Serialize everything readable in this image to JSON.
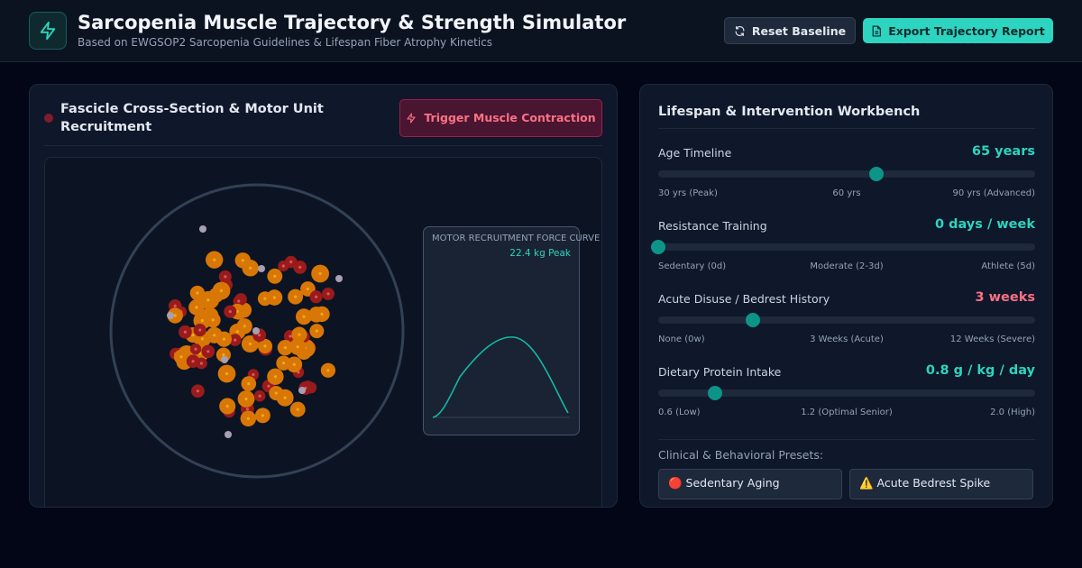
{
  "header": {
    "title": "Sarcopenia Muscle Trajectory & Strength Simulator",
    "subtitle": "Based on EWGSOP2 Sarcopenia Guidelines & Lifespan Fiber Atrophy Kinetics",
    "reset_label": "Reset Baseline",
    "export_label": "Export Trajectory Report",
    "logo_icon": "lightning-icon",
    "accent": "#2dd4bf"
  },
  "left_panel": {
    "title": "Fascicle Cross-Section & Motor Unit Recruitment",
    "trigger_label": "Trigger Muscle Contraction",
    "force_curve": {
      "label": "MOTOR RECRUITMENT FORCE CURVE",
      "peak": "22.4 kg Peak"
    },
    "fiber_colors": {
      "type2_fast": "#d97706",
      "type1_slow": "#991b1b",
      "fat_infiltration": "#a8a0b0"
    }
  },
  "right_panel": {
    "title": "Lifespan & Intervention Workbench",
    "sliders": [
      {
        "label": "Age Timeline",
        "value": "65 years",
        "fraction": 0.58,
        "color": "#2dd4bf",
        "ticks": [
          "30 yrs (Peak)",
          "60 yrs",
          "90 yrs (Advanced)"
        ]
      },
      {
        "label": "Resistance Training",
        "value": "0 days / week",
        "fraction": 0.0,
        "color": "#2dd4bf",
        "ticks": [
          "Sedentary (0d)",
          "Moderate (2-3d)",
          "Athlete (5d)"
        ]
      },
      {
        "label": "Acute Disuse / Bedrest History",
        "value": "3 weeks",
        "fraction": 0.25,
        "color": "#fb7185",
        "ticks": [
          "None (0w)",
          "3 Weeks (Acute)",
          "12 Weeks (Severe)"
        ]
      },
      {
        "label": "Dietary Protein Intake",
        "value": "0.8 g / kg / day",
        "fraction": 0.15,
        "color": "#2dd4bf",
        "ticks": [
          "0.6 (Low)",
          "1.2 (Optimal Senior)",
          "2.0 (High)"
        ]
      }
    ],
    "presets_label": "Clinical & Behavioral Presets:",
    "presets": [
      "🔴 Sedentary Aging",
      "⚠️ Acute Bedrest Spike"
    ]
  }
}
